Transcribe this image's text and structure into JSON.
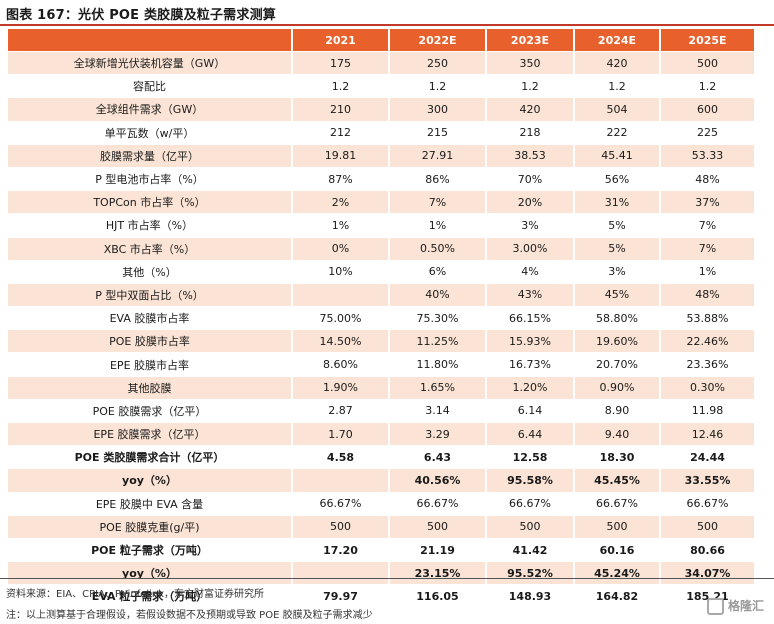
{
  "title": "图表 167：光伏 POE 类胶膜及粒子需求测算",
  "table": {
    "headers": [
      "",
      "2021",
      "2022E",
      "2023E",
      "2024E",
      "2025E"
    ],
    "rows": [
      {
        "label": "全球新增光伏装机容量（GW）",
        "values": [
          "175",
          "250",
          "350",
          "420",
          "500"
        ],
        "bold": false
      },
      {
        "label": "容配比",
        "values": [
          "1.2",
          "1.2",
          "1.2",
          "1.2",
          "1.2"
        ],
        "bold": false
      },
      {
        "label": "全球组件需求（GW）",
        "values": [
          "210",
          "300",
          "420",
          "504",
          "600"
        ],
        "bold": false
      },
      {
        "label": "单平瓦数（w/平）",
        "values": [
          "212",
          "215",
          "218",
          "222",
          "225"
        ],
        "bold": false
      },
      {
        "label": "胶膜需求量（亿平）",
        "values": [
          "19.81",
          "27.91",
          "38.53",
          "45.41",
          "53.33"
        ],
        "bold": false
      },
      {
        "label": "P 型电池市占率（%）",
        "values": [
          "87%",
          "86%",
          "70%",
          "56%",
          "48%"
        ],
        "bold": false
      },
      {
        "label": "TOPCon 市占率（%）",
        "values": [
          "2%",
          "7%",
          "20%",
          "31%",
          "37%"
        ],
        "bold": false
      },
      {
        "label": "HJT 市占率（%）",
        "values": [
          "1%",
          "1%",
          "3%",
          "5%",
          "7%"
        ],
        "bold": false
      },
      {
        "label": "XBC 市占率（%）",
        "values": [
          "0%",
          "0.50%",
          "3.00%",
          "5%",
          "7%"
        ],
        "bold": false
      },
      {
        "label": "其他（%）",
        "values": [
          "10%",
          "6%",
          "4%",
          "3%",
          "1%"
        ],
        "bold": false
      },
      {
        "label": "P 型中双面占比（%）",
        "values": [
          "",
          "40%",
          "43%",
          "45%",
          "48%"
        ],
        "bold": false
      },
      {
        "label": "EVA 胶膜市占率",
        "values": [
          "75.00%",
          "75.30%",
          "66.15%",
          "58.80%",
          "53.88%"
        ],
        "bold": false
      },
      {
        "label": "POE 胶膜市占率",
        "values": [
          "14.50%",
          "11.25%",
          "15.93%",
          "19.60%",
          "22.46%"
        ],
        "bold": false
      },
      {
        "label": "EPE 胶膜市占率",
        "values": [
          "8.60%",
          "11.80%",
          "16.73%",
          "20.70%",
          "23.36%"
        ],
        "bold": false
      },
      {
        "label": "其他胶膜",
        "values": [
          "1.90%",
          "1.65%",
          "1.20%",
          "0.90%",
          "0.30%"
        ],
        "bold": false
      },
      {
        "label": "POE 胶膜需求（亿平）",
        "values": [
          "2.87",
          "3.14",
          "6.14",
          "8.90",
          "11.98"
        ],
        "bold": false
      },
      {
        "label": "EPE 胶膜需求（亿平）",
        "values": [
          "1.70",
          "3.29",
          "6.44",
          "9.40",
          "12.46"
        ],
        "bold": false
      },
      {
        "label": "POE 类胶膜需求合计（亿平）",
        "values": [
          "4.58",
          "6.43",
          "12.58",
          "18.30",
          "24.44"
        ],
        "bold": true
      },
      {
        "label": "yoy（%）",
        "values": [
          "",
          "40.56%",
          "95.58%",
          "45.45%",
          "33.55%"
        ],
        "bold": true
      },
      {
        "label": "EPE 胶膜中 EVA 含量",
        "values": [
          "66.67%",
          "66.67%",
          "66.67%",
          "66.67%",
          "66.67%"
        ],
        "bold": false
      },
      {
        "label": "POE 胶膜克重(g/平)",
        "values": [
          "500",
          "500",
          "500",
          "500",
          "500"
        ],
        "bold": false
      },
      {
        "label": "POE 粒子需求（万吨）",
        "values": [
          "17.20",
          "21.19",
          "41.42",
          "60.16",
          "80.66"
        ],
        "bold": true
      },
      {
        "label": "yoy（%）",
        "values": [
          "",
          "23.15%",
          "95.52%",
          "45.24%",
          "34.07%"
        ],
        "bold": true
      },
      {
        "label": "EVA 粒子需求（万吨）",
        "values": [
          "79.97",
          "116.05",
          "148.93",
          "164.82",
          "185.21"
        ],
        "bold": true
      }
    ]
  },
  "footer": {
    "source": "资料来源：EIA、CPIA、PVinfolink，东方财富证券研究所",
    "note": "注：以上测算基于合理假设，若假设数据不及预期或导致 POE 胶膜及粒子需求减少",
    "logo_text": "格隆汇"
  }
}
